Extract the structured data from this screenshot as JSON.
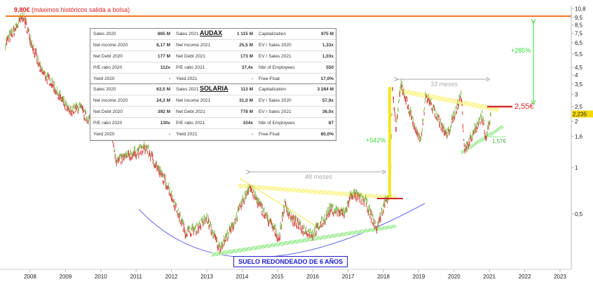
{
  "chart_data": {
    "type": "line",
    "title": "",
    "xlabel": "",
    "ylabel": "",
    "scale": "log",
    "ylim": [
      0.22,
      11.5
    ],
    "xlim": [
      2007.3,
      2023.3
    ],
    "x_ticks": [
      "2008",
      "2009",
      "2010",
      "2011",
      "2012",
      "2013",
      "2014",
      "2015",
      "2016",
      "2017",
      "2018",
      "2019",
      "2020",
      "2021",
      "2022",
      "2023"
    ],
    "y_ticks": [
      "10,8",
      "9,5",
      "8,5",
      "7,5",
      "6,5",
      "5,5",
      "4,5",
      "4",
      "3,5",
      "3",
      "2,5",
      "2",
      "1,6",
      "1",
      "0,5"
    ],
    "y_tick_values": [
      10.8,
      9.5,
      8.5,
      7.5,
      6.5,
      5.5,
      4.5,
      4,
      3.5,
      3,
      2.5,
      2,
      1.6,
      1,
      0.5
    ],
    "last_price_label": "2,235",
    "last_price": 2.235,
    "series": [
      {
        "name": "Solaria price (EUR)",
        "points": [
          [
            2007.3,
            6.5
          ],
          [
            2007.55,
            7.8
          ],
          [
            2007.8,
            9.8
          ],
          [
            2008.0,
            7.0
          ],
          [
            2008.3,
            4.3
          ],
          [
            2008.6,
            3.6
          ],
          [
            2009.1,
            2.3
          ],
          [
            2009.4,
            2.5
          ],
          [
            2009.6,
            2.1
          ],
          [
            2010.0,
            2.0
          ],
          [
            2010.3,
            1.7
          ],
          [
            2010.45,
            1.1
          ],
          [
            2010.8,
            1.2
          ],
          [
            2011.3,
            1.35
          ],
          [
            2011.6,
            1.0
          ],
          [
            2011.9,
            0.76
          ],
          [
            2012.2,
            0.5
          ],
          [
            2012.4,
            0.38
          ],
          [
            2012.7,
            0.4
          ],
          [
            2013.0,
            0.47
          ],
          [
            2013.35,
            0.3
          ],
          [
            2013.7,
            0.4
          ],
          [
            2013.95,
            0.55
          ],
          [
            2014.2,
            0.76
          ],
          [
            2014.6,
            0.52
          ],
          [
            2015.05,
            0.35
          ],
          [
            2015.2,
            0.58
          ],
          [
            2015.4,
            0.47
          ],
          [
            2015.7,
            0.4
          ],
          [
            2016.0,
            0.37
          ],
          [
            2016.3,
            0.45
          ],
          [
            2016.5,
            0.54
          ],
          [
            2016.9,
            0.5
          ],
          [
            2017.1,
            0.68
          ],
          [
            2017.5,
            0.6
          ],
          [
            2017.8,
            0.4
          ],
          [
            2018.05,
            0.6
          ],
          [
            2018.2,
            0.7
          ],
          [
            2018.25,
            3.3
          ],
          [
            2018.35,
            1.8
          ],
          [
            2018.5,
            3.5
          ],
          [
            2018.9,
            1.8
          ],
          [
            2019.05,
            1.45
          ],
          [
            2019.2,
            3.0
          ],
          [
            2019.5,
            2.2
          ],
          [
            2019.8,
            1.6
          ],
          [
            2020.2,
            3.0
          ],
          [
            2020.3,
            1.3
          ],
          [
            2020.7,
            2.0
          ],
          [
            2020.8,
            2.2
          ],
          [
            2020.9,
            1.6
          ],
          [
            2021.05,
            2.235
          ]
        ]
      }
    ],
    "levels": {
      "ath": 9.8,
      "resistance": 2.55,
      "support": 1.57
    }
  },
  "annotations": {
    "ath_value": "9,80€",
    "ath_text": "(máximos históricos salida a bolsa)",
    "upside": "+285%",
    "rally": "+542%",
    "months_33": "33 meses",
    "months_48": "48 meses",
    "resistance": "2,55€",
    "support": "1,57€",
    "base_label": "SUELO REDONDEADO DE 6 AÑOS"
  },
  "tables": [
    {
      "title": "AUDAX",
      "rows": [
        [
          "Sales 2020",
          "865 M",
          "Sales 2021",
          "1 115 M",
          "Capitalization",
          "975 M"
        ],
        [
          "Net income 2020",
          "8,17 M",
          "Net income 2021",
          "25,5 M",
          "EV / Sales 2020",
          "1,33x"
        ],
        [
          "Net Debt 2020",
          "177 M",
          "Net Debt 2021",
          "173 M",
          "EV / Sales 2021",
          "1,03x"
        ],
        [
          "P/E ratio 2020",
          "112x",
          "P/E ratio 2021",
          "37,4x",
          "Nbr of Employees",
          "550"
        ],
        [
          "Yield 2020",
          "-",
          "Yield 2021",
          "-",
          "Free-Float",
          "17,0%"
        ]
      ]
    },
    {
      "title": "SOLARIA",
      "rows": [
        [
          "Sales 2020",
          "63,5 M",
          "Sales 2021",
          "113 M",
          "Capitalization",
          "3 284 M"
        ],
        [
          "Net income 2020",
          "24,3 M",
          "Net income 2021",
          "31,0 M",
          "EV / Sales 2020",
          "57,9x"
        ],
        [
          "Net Debt 2020",
          "392 M",
          "Net Debt 2021",
          "778 M",
          "EV / Sales 2021",
          "36,0x"
        ],
        [
          "P/E ratio 2020",
          "130x",
          "P/E ratio 2021",
          "104x",
          "Nbr of Employees",
          "87"
        ],
        [
          "Yield 2020",
          "-",
          "Yield 2021",
          "-",
          "Free-Float",
          "60,0%"
        ]
      ]
    }
  ],
  "colors": {
    "up": "#7cb342",
    "down": "#d32f2f",
    "ath": "#f07820",
    "accent_green": "#33dd33",
    "red": "#e02020",
    "blue": "#2222cc",
    "highlight": "#f5d90a"
  }
}
